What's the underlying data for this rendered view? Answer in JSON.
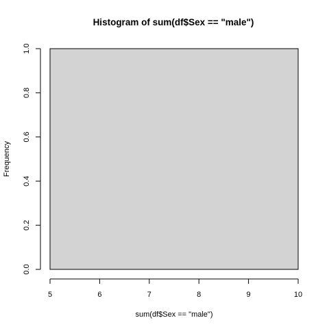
{
  "chart_data": {
    "type": "bar",
    "title": "Histogram of sum(df$Sex == \"male\")",
    "xlabel": "sum(df$Sex == \"male\")",
    "ylabel": "Frequency",
    "bins": [
      {
        "start": 5,
        "end": 10,
        "count": 1
      }
    ],
    "xlim": [
      5,
      10
    ],
    "ylim": [
      0,
      1
    ],
    "x_ticks": [
      "5",
      "6",
      "7",
      "8",
      "9",
      "10"
    ],
    "y_ticks": [
      "0.0",
      "0.2",
      "0.4",
      "0.6",
      "0.8",
      "1.0"
    ],
    "bar_fill": "#d3d3d3",
    "bar_stroke": "#000000",
    "grid": false
  }
}
